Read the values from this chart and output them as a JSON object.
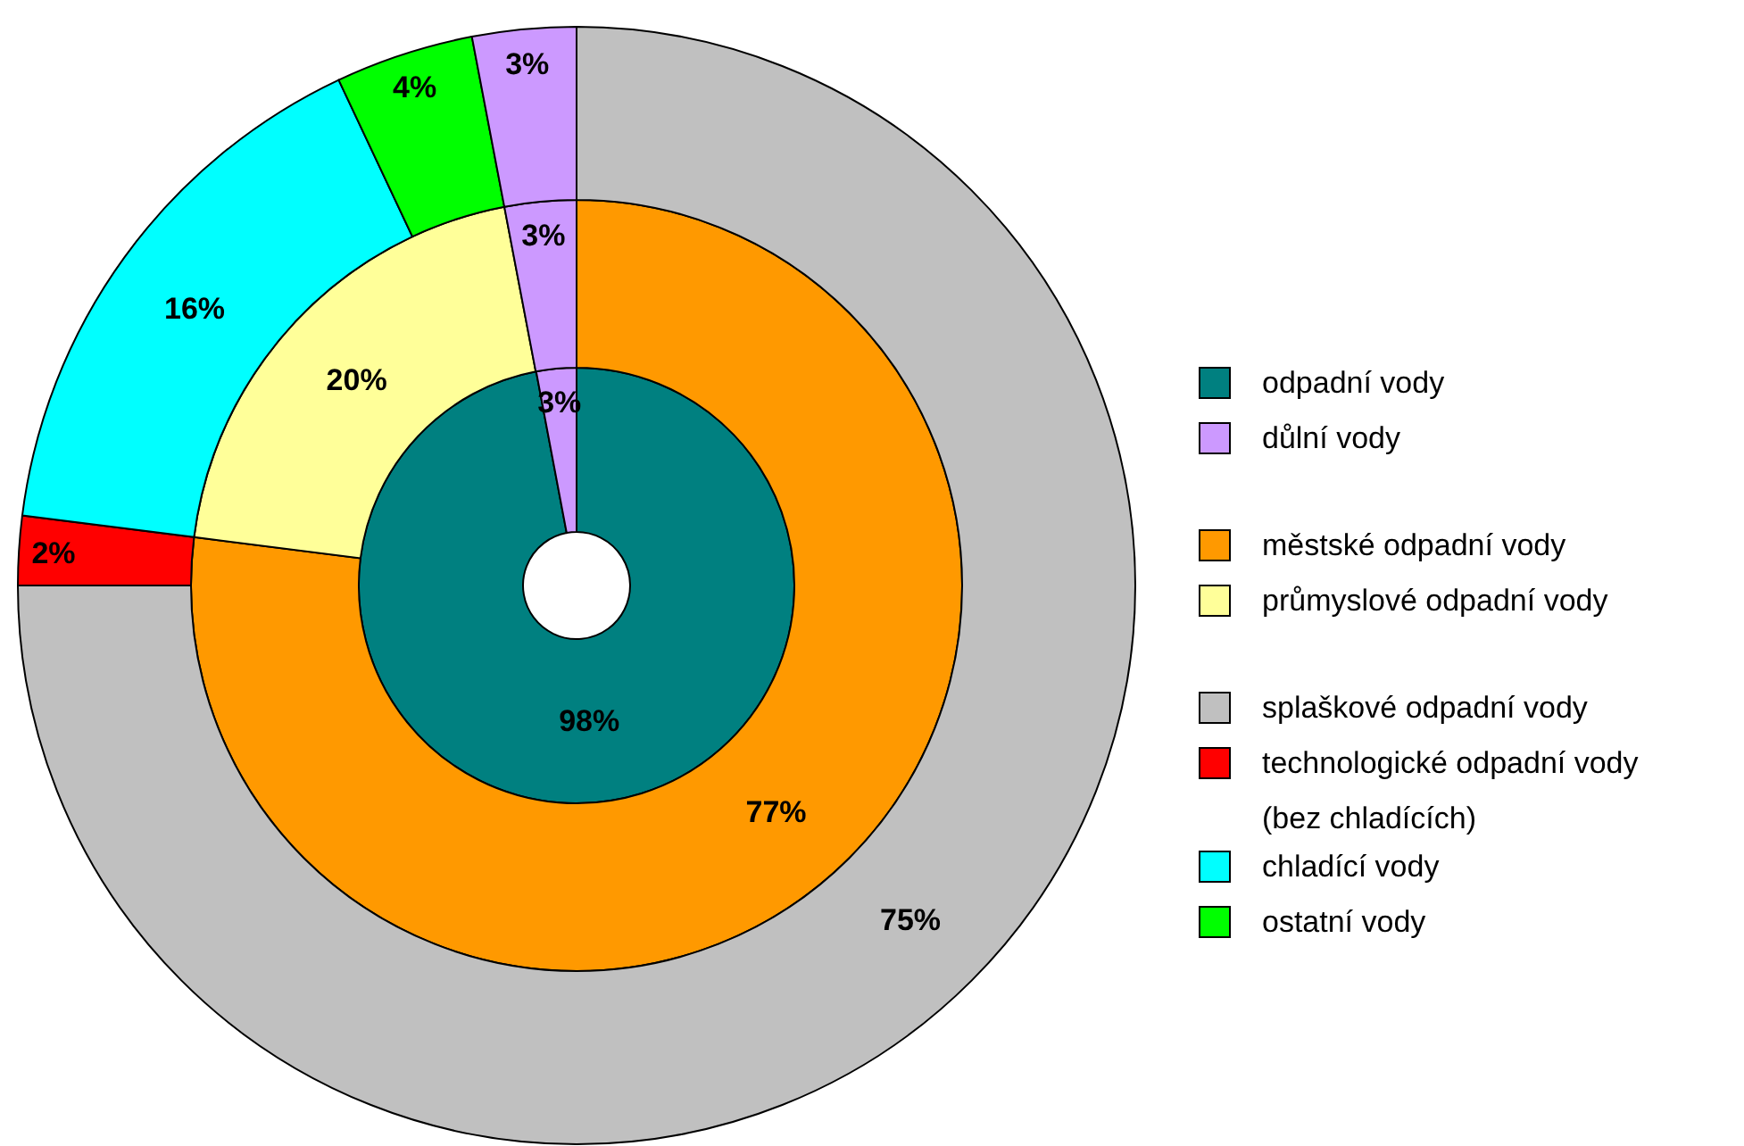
{
  "chart_data": [
    {
      "type": "donut",
      "categories": [
        "odpadní vody",
        "důlní vody"
      ],
      "values": [
        98,
        3
      ],
      "colors": [
        "#008080",
        "#cc99ff"
      ],
      "value_labels": [
        "98%",
        "3%"
      ],
      "legend": "right"
    },
    {
      "type": "donut",
      "categories": [
        "městské odpadní vody",
        "průmyslové odpadní vody",
        null
      ],
      "values": [
        77,
        20,
        3
      ],
      "colors": [
        "#ff9900",
        "#ffff99",
        "#cc99ff"
      ],
      "value_labels": [
        "77%",
        "20%",
        "3%"
      ],
      "legend": "right"
    },
    {
      "type": "donut",
      "categories": [
        "splaškové odpadní vody",
        "technologické odpadní vody (bez chladících)",
        "chladící vody",
        "ostatní vody",
        null
      ],
      "values": [
        75,
        2,
        16,
        4,
        3
      ],
      "colors": [
        "#c0c0c0",
        "#ff0000",
        "#00ffff",
        "#00ff00",
        "#cc99ff"
      ],
      "value_labels": [
        "75%",
        "2%",
        "16%",
        "4%",
        "3%"
      ],
      "legend": "right"
    }
  ]
}
